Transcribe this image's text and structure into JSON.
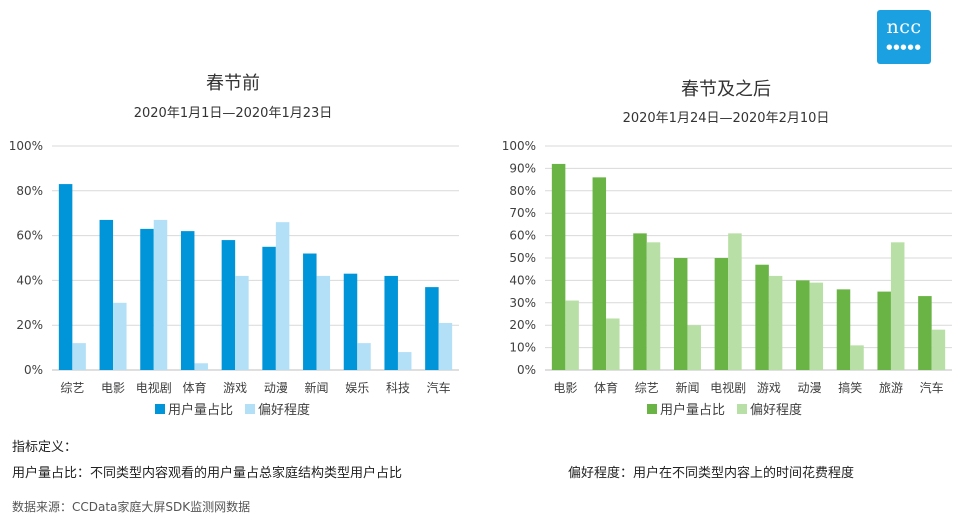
{
  "logo": {
    "text": "ncc",
    "dots": "●●●●●"
  },
  "chart_data": [
    {
      "type": "bar",
      "title": "春节前",
      "subtitle": "2020年1月1日—2020年1月23日",
      "categories": [
        "综艺",
        "电影",
        "电视剧",
        "体育",
        "游戏",
        "动漫",
        "新闻",
        "娱乐",
        "科技",
        "汽车"
      ],
      "series": [
        {
          "name": "用户量占比",
          "color": "#0095d9",
          "values": [
            83,
            67,
            63,
            62,
            58,
            55,
            52,
            43,
            42,
            37
          ]
        },
        {
          "name": "偏好程度",
          "color": "#b3e0f7",
          "values": [
            12,
            30,
            67,
            3,
            42,
            66,
            42,
            12,
            8,
            21
          ]
        }
      ],
      "yticks": [
        "0%",
        "20%",
        "40%",
        "60%",
        "80%",
        "100%"
      ],
      "ylim": [
        0,
        100
      ],
      "grid": true,
      "legend": "bottom"
    },
    {
      "type": "bar",
      "title": "春节及之后",
      "subtitle": "2020年1月24日—2020年2月10日",
      "categories": [
        "电影",
        "体育",
        "综艺",
        "新闻",
        "电视剧",
        "游戏",
        "动漫",
        "搞笑",
        "旅游",
        "汽车"
      ],
      "series": [
        {
          "name": "用户量占比",
          "color": "#6ab446",
          "values": [
            92,
            86,
            61,
            50,
            50,
            47,
            40,
            36,
            35,
            33
          ]
        },
        {
          "name": "偏好程度",
          "color": "#b8dfa5",
          "values": [
            31,
            23,
            57,
            20,
            61,
            42,
            39,
            11,
            57,
            18
          ]
        }
      ],
      "yticks": [
        "0%",
        "10%",
        "20%",
        "30%",
        "40%",
        "50%",
        "60%",
        "70%",
        "80%",
        "90%",
        "100%"
      ],
      "ylim": [
        0,
        100
      ],
      "grid": true,
      "legend": "bottom"
    }
  ],
  "notes": {
    "heading": "指标定义：",
    "user_share": "用户量占比：不同类型内容观看的用户量占总家庭结构类型用户占比",
    "preference": "偏好程度：用户在不同类型内容上的时间花费程度"
  },
  "source": "数据来源：CCData家庭大屏SDK监测网数据"
}
